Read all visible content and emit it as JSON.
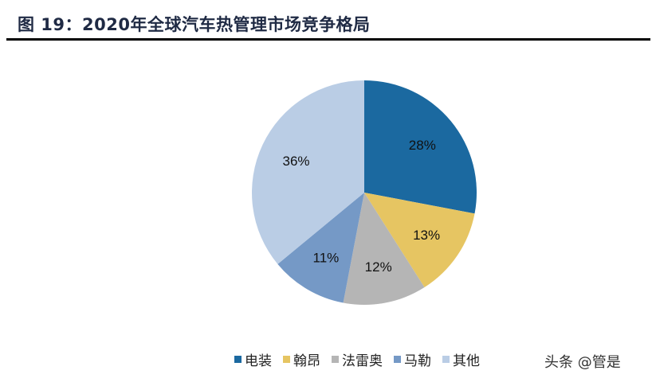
{
  "header": {
    "title": "图 19：2020年全球汽车热管理市场竞争格局"
  },
  "chart_data": {
    "type": "pie",
    "title": "2020年全球汽车热管理市场竞争格局",
    "categories": [
      "电装",
      "翰昂",
      "法雷奥",
      "马勒",
      "其他"
    ],
    "values": [
      28,
      13,
      12,
      11,
      36
    ],
    "labels": [
      "28%",
      "13%",
      "12%",
      "11%",
      "36%"
    ],
    "colors": [
      "#1B69A0",
      "#E6C562",
      "#B5B5B5",
      "#7599C6",
      "#BACDE5"
    ],
    "start_angle": "12 o'clock",
    "direction": "clockwise",
    "legend_position": "bottom"
  },
  "legend": {
    "items": [
      {
        "label": "电装",
        "color": "#1B69A0"
      },
      {
        "label": "翰昂",
        "color": "#E6C562"
      },
      {
        "label": "法雷奥",
        "color": "#B5B5B5"
      },
      {
        "label": "马勒",
        "color": "#7599C6"
      },
      {
        "label": "其他",
        "color": "#BACDE5"
      }
    ]
  },
  "watermark": {
    "text": "头条 @管是"
  }
}
